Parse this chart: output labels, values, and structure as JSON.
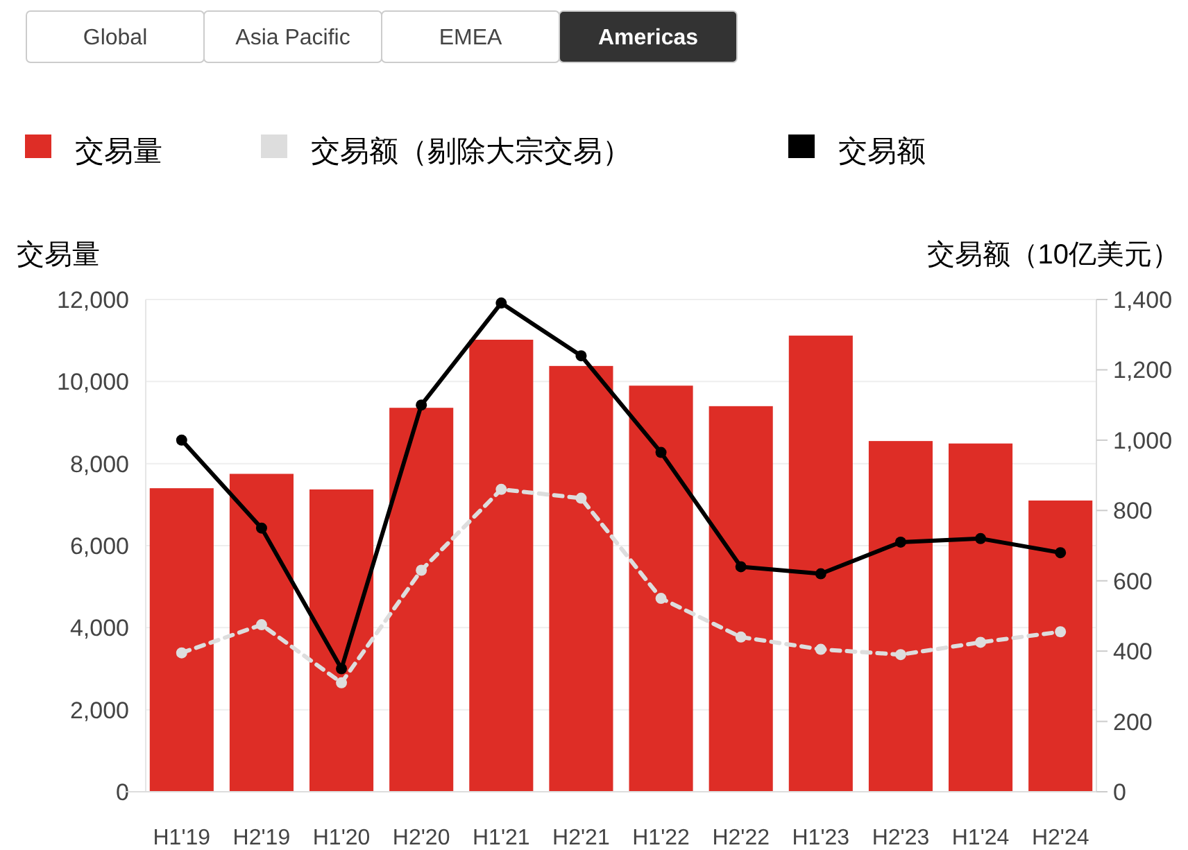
{
  "chart_data": {
    "type": "bar",
    "annotations": [
      "Global",
      "Asia Pacific",
      "EMEA",
      "Americas"
    ],
    "ylabel": "交易量",
    "y2label": "交易额（10亿美元）",
    "categories": [
      "H1'19",
      "H2'19",
      "H1'20",
      "H2'20",
      "H1'21",
      "H2'21",
      "H1'22",
      "H2'22",
      "H1'23",
      "H2'23",
      "H1'24",
      "H2'24"
    ],
    "series": [
      {
        "name": "交易量",
        "color": "#de2d26",
        "values": [
          7400,
          7750,
          7370,
          9360,
          11020,
          10380,
          9900,
          9400,
          11120,
          8550,
          8490,
          7100
        ]
      },
      {
        "name": "交易额（剔除大宗交易）",
        "type": "line",
        "axis": "y2",
        "color": "#dddddd",
        "line_style": "dashed",
        "marker": "circle",
        "values": [
          395,
          475,
          310,
          630,
          860,
          835,
          550,
          440,
          405,
          390,
          425,
          455
        ]
      },
      {
        "name": "交易额",
        "type": "line",
        "axis": "y2",
        "color": "#000000",
        "line_style": "solid",
        "marker": "circle",
        "values": [
          1000,
          750,
          350,
          1100,
          1390,
          1240,
          965,
          640,
          620,
          710,
          720,
          680
        ]
      }
    ],
    "ylim": [
      0,
      12000
    ],
    "yticks": [
      {
        "value": 0,
        "label": "0"
      },
      {
        "value": 2000,
        "label": "2,000"
      },
      {
        "value": 4000,
        "label": "4,000"
      },
      {
        "value": 6000,
        "label": "6,000"
      },
      {
        "value": 8000,
        "label": "8,000"
      },
      {
        "value": 10000,
        "label": "10,000"
      },
      {
        "value": 12000,
        "label": "12,000"
      }
    ],
    "y2lim": [
      0,
      1400
    ],
    "y2ticks": [
      {
        "value": 0,
        "label": "0"
      },
      {
        "value": 200,
        "label": "200"
      },
      {
        "value": 400,
        "label": "400"
      },
      {
        "value": 600,
        "label": "600"
      },
      {
        "value": 800,
        "label": "800"
      },
      {
        "value": 1000,
        "label": "1,000"
      },
      {
        "value": 1200,
        "label": "1,200"
      },
      {
        "value": 1400,
        "label": "1,400"
      }
    ],
    "grid": "y",
    "legend": "top"
  }
}
